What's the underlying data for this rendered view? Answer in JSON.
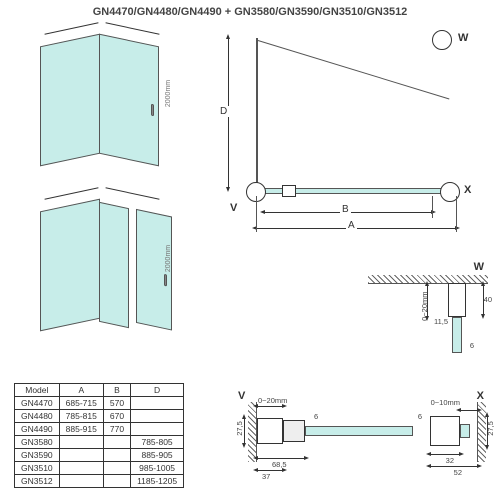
{
  "title": "GN4470/GN4480/GN4490 + GN3580/GN3590/GN3510/GN3512",
  "height_label": "2000mm",
  "plan": {
    "W": "W",
    "V": "V",
    "X": "X",
    "A": "A",
    "B": "B",
    "D": "D"
  },
  "table": {
    "headers": [
      "Model",
      "A",
      "B",
      "D"
    ],
    "rows": [
      [
        "GN4470",
        "685-715",
        "570",
        ""
      ],
      [
        "GN4480",
        "785-815",
        "670",
        ""
      ],
      [
        "GN4490",
        "885-915",
        "770",
        ""
      ],
      [
        "GN3580",
        "",
        "",
        "785-805"
      ],
      [
        "GN3590",
        "",
        "",
        "885-905"
      ],
      [
        "GN3510",
        "",
        "",
        "985-1005"
      ],
      [
        "GN3512",
        "",
        "",
        "1185-1205"
      ]
    ]
  },
  "detail_w": {
    "label": "W",
    "d1": "0~20mm",
    "d2": "40",
    "d3": "11,5",
    "d4": "6"
  },
  "detail_vx": {
    "V": "V",
    "X": "X",
    "d020": "0~20mm",
    "d010": "0~10mm",
    "d685": "68,5",
    "d37": "37",
    "d275l": "27,5",
    "d32": "32",
    "d52": "52",
    "d275r": "27,5",
    "d6l": "6",
    "d6r": "6"
  },
  "colors": {
    "glass": "#c7ede9",
    "line": "#333"
  }
}
